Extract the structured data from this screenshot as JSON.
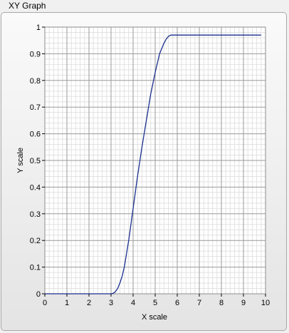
{
  "graph": {
    "title": "XY Graph"
  },
  "colors": {
    "plot_background": "#ffffff",
    "major_grid": "#9a9a9a",
    "minor_grid": "#e2e2e2",
    "trace": "#1a2f8f"
  },
  "chart_data": {
    "type": "line",
    "title": "",
    "xlabel": "X scale",
    "ylabel": "Y scale",
    "xlim": [
      0,
      10
    ],
    "ylim": [
      0,
      1
    ],
    "xticks": [
      "0",
      "1",
      "2",
      "3",
      "4",
      "5",
      "6",
      "7",
      "8",
      "9",
      "10"
    ],
    "yticks": [
      "0",
      "0.1",
      "0.2",
      "0.3",
      "0.4",
      "0.5",
      "0.6",
      "0.7",
      "0.8",
      "0.9",
      "1"
    ],
    "grid": true,
    "minor_grid": true,
    "series": [
      {
        "x": [
          0,
          1,
          2,
          3,
          3.1,
          3.2,
          3.3,
          3.4,
          3.5,
          3.6,
          3.7,
          3.8,
          3.9,
          4.0,
          4.2,
          4.4,
          4.6,
          4.8,
          5.0,
          5.2,
          5.4,
          5.5,
          5.6,
          5.7,
          5.8,
          6,
          7,
          8,
          9,
          9.8
        ],
        "y": [
          0,
          0,
          0,
          0,
          0.002,
          0.008,
          0.02,
          0.04,
          0.065,
          0.1,
          0.15,
          0.2,
          0.26,
          0.32,
          0.44,
          0.55,
          0.65,
          0.75,
          0.83,
          0.9,
          0.94,
          0.955,
          0.965,
          0.97,
          0.97,
          0.97,
          0.97,
          0.97,
          0.97,
          0.97
        ]
      }
    ]
  }
}
